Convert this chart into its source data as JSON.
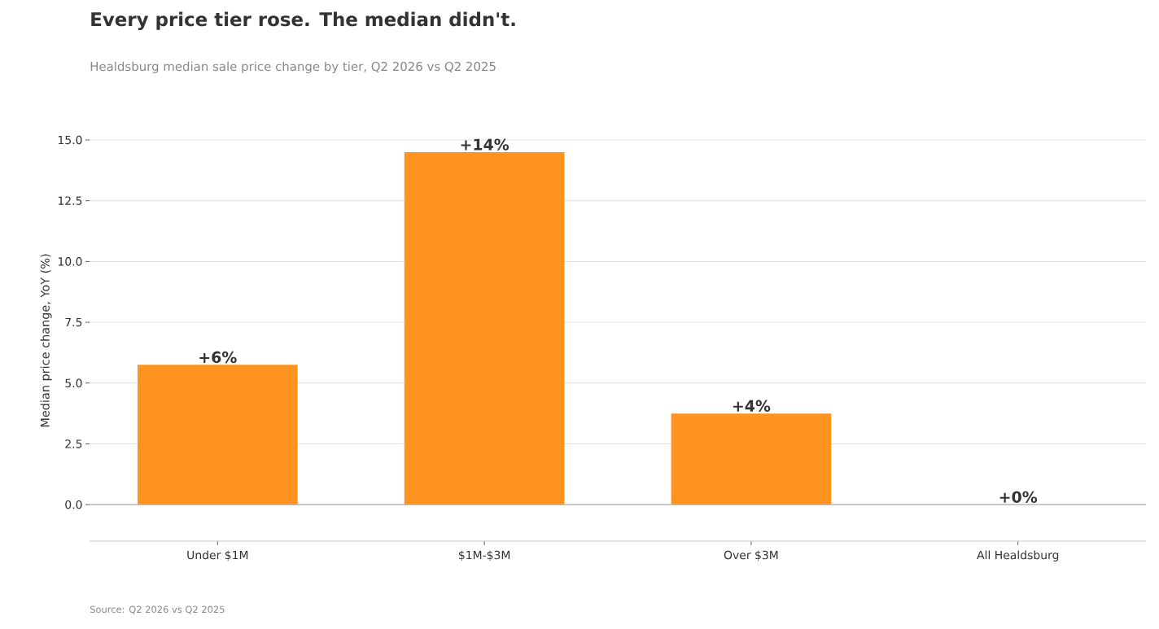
{
  "chart_data": {
    "type": "bar",
    "title": "Every price tier rose. The median didn't.",
    "subtitle": "Healdsburg median sale price change by tier, Q2 2026 vs Q2 2025",
    "ylabel": "Median price change, YoY (%)",
    "annotations": [
      "Source: Q2 2026 vs Q2 2025"
    ],
    "categories": [
      "Under $1M",
      "$1M-$3M",
      "Over $3M",
      "All Healdsburg"
    ],
    "values": [
      5.75,
      14.5,
      3.75,
      0
    ],
    "value_labels": [
      "+6%",
      "+14%",
      "+4%",
      "+0%"
    ],
    "color": "#ff9320",
    "ylim": [
      -1.5,
      15
    ],
    "yticks": [
      {
        "value": 0,
        "label": "0.0"
      },
      {
        "value": 2.5,
        "label": "2.5"
      },
      {
        "value": 5,
        "label": "5.0"
      },
      {
        "value": 7.5,
        "label": "7.5"
      },
      {
        "value": 10,
        "label": "10.0"
      },
      {
        "value": 12.5,
        "label": "12.5"
      },
      {
        "value": 15,
        "label": "15.0"
      }
    ],
    "grid": "y",
    "ref_lines": [
      {
        "axis": "y",
        "value": 0,
        "color": "#b0b0b0"
      }
    ]
  }
}
